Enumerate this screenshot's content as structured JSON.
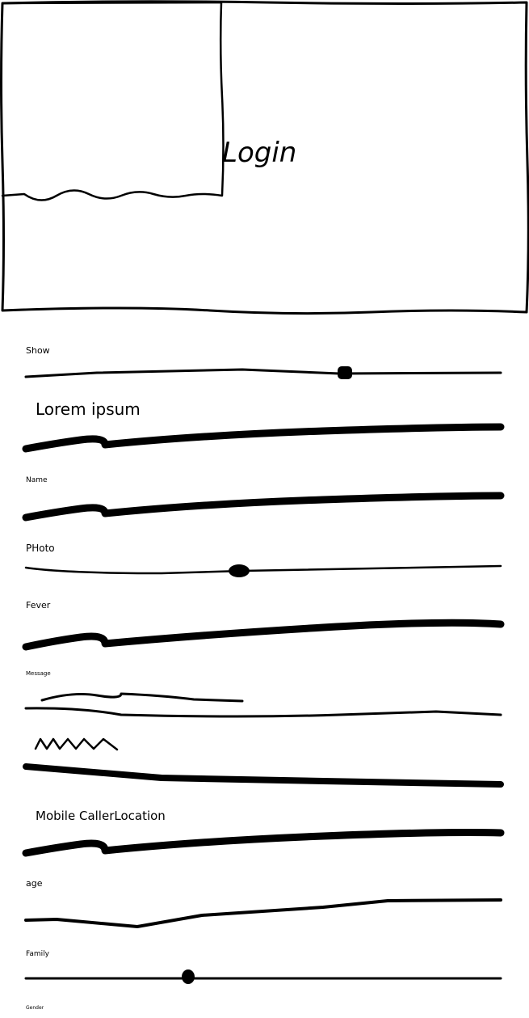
{
  "screen": {
    "title": "Login",
    "fields": [
      {
        "label": "Show"
      },
      {
        "label": "Lorem ipsum"
      },
      {
        "label": "Name"
      },
      {
        "label": "PHoto"
      },
      {
        "label": "Fever"
      },
      {
        "label": "Message"
      },
      {
        "label": "Mobile CallerLocation"
      },
      {
        "label": "age"
      },
      {
        "label": "Family"
      },
      {
        "label": "Gender"
      }
    ]
  }
}
